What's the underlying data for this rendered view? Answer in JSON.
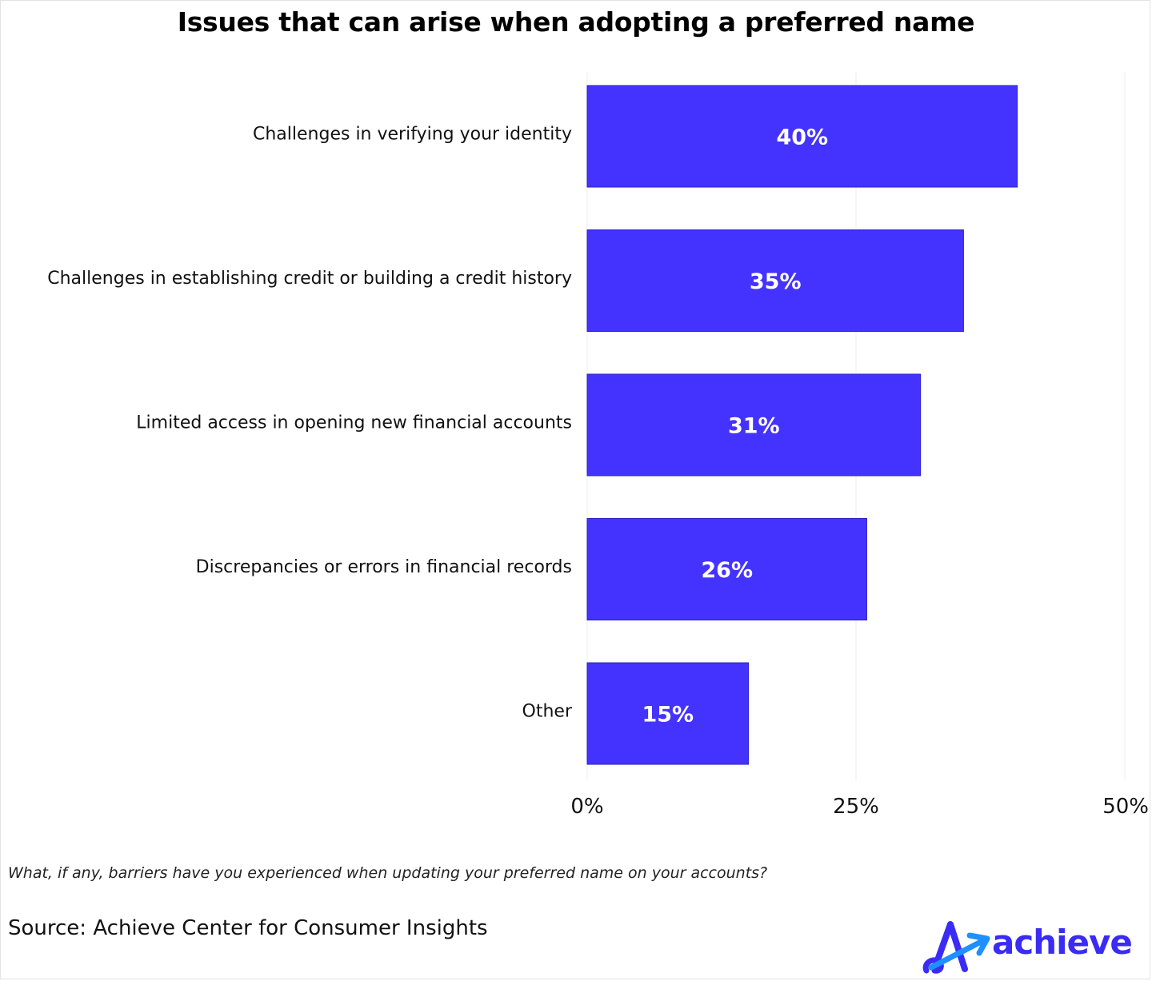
{
  "title": "Issues that can arise when adopting a preferred name",
  "question": "What, if any, barriers have you experienced when updating your preferred name on your accounts?",
  "source": "Source: Achieve Center for Consumer Insights",
  "logo": {
    "text": "achieve",
    "icon": "achieve-arrow-logo-icon",
    "color": "#3a2cf5",
    "accent": "#1e90ff"
  },
  "colors": {
    "bar": "#4433ff",
    "grid": "#eeeeee"
  },
  "chart_data": {
    "type": "bar",
    "orientation": "horizontal",
    "title": "Issues that can arise when adopting a preferred name",
    "xlabel": "",
    "ylabel": "",
    "categories": [
      "Challenges in verifying your identity",
      "Challenges in establishing credit or building a credit history",
      "Limited access in opening new financial accounts",
      "Discrepancies or errors in financial records",
      "Other"
    ],
    "values": [
      40,
      35,
      31,
      26,
      15
    ],
    "value_labels": [
      "40%",
      "35%",
      "31%",
      "26%",
      "15%"
    ],
    "xlim": [
      0,
      50
    ],
    "ticks": [
      0,
      25,
      50
    ],
    "tick_labels": [
      "0%",
      "25%",
      "50%"
    ],
    "grid": true,
    "legend": "none"
  }
}
